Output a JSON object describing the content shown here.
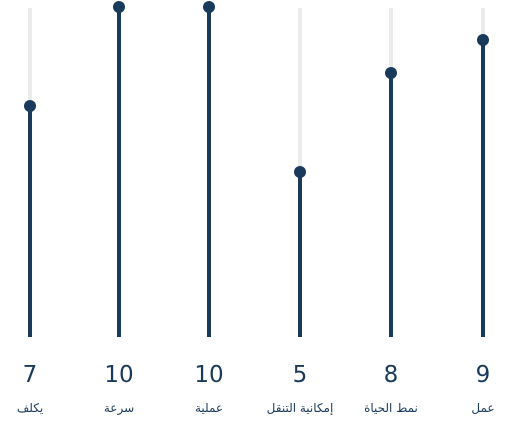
{
  "chart_data": {
    "type": "lollipop",
    "categories": [
      "يكلف",
      "سرعة",
      "عملية",
      "إمكانية التنقل",
      "نمط الحياة",
      "عمل"
    ],
    "values": [
      7,
      10,
      10,
      5,
      8,
      9
    ],
    "value_labels": [
      "7",
      "10",
      "10",
      "5",
      "8",
      "9"
    ],
    "ylim": [
      0,
      10
    ],
    "title": "",
    "xlabel": "",
    "ylabel": "",
    "grid": false,
    "legend": "none",
    "colors": {
      "stem": "#1a3a5c",
      "dot": "#1a3a5c",
      "track": "#ebebeb",
      "text": "#1a3a5c"
    }
  }
}
